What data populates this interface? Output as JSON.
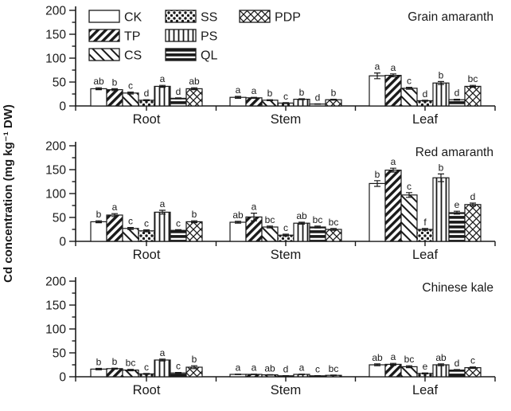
{
  "figure": {
    "y_axis_label": "Cd concentration (mg kg⁻¹ DW)",
    "ink_color": "#1a1a1a",
    "background": "#ffffff"
  },
  "legend": {
    "position": "top-left-of-first-panel",
    "items": [
      {
        "label": "CK",
        "pattern": "plain"
      },
      {
        "label": "TP",
        "pattern": "diag-forward"
      },
      {
        "label": "CS",
        "pattern": "diag-back"
      },
      {
        "label": "SS",
        "pattern": "dots"
      },
      {
        "label": "PS",
        "pattern": "vertical"
      },
      {
        "label": "QL",
        "pattern": "horizontal"
      },
      {
        "label": "PDP",
        "pattern": "crosshatch"
      }
    ]
  },
  "chart_data": [
    {
      "type": "bar",
      "title": "Grain amaranth",
      "categories": [
        "Root",
        "Stem",
        "Leaf"
      ],
      "ylim": [
        0,
        200
      ],
      "yticks": [
        0,
        50,
        100,
        150,
        200
      ],
      "minor_tick_step": 25,
      "grid": false,
      "series": [
        {
          "name": "CK",
          "pattern": "plain",
          "values": [
            36,
            18,
            63
          ],
          "errors": [
            2,
            2,
            6
          ],
          "letters": [
            "ab",
            "a",
            "a"
          ]
        },
        {
          "name": "TP",
          "pattern": "diag-forward",
          "values": [
            34,
            17,
            64
          ],
          "errors": [
            2,
            1,
            3
          ],
          "letters": [
            "b",
            "a",
            "a"
          ]
        },
        {
          "name": "CS",
          "pattern": "diag-back",
          "values": [
            27,
            12,
            37
          ],
          "errors": [
            2,
            1,
            2
          ],
          "letters": [
            "c",
            "b",
            "c"
          ]
        },
        {
          "name": "SS",
          "pattern": "dots",
          "values": [
            12,
            6,
            11
          ],
          "errors": [
            1,
            1,
            1
          ],
          "letters": [
            "d",
            "c",
            "d"
          ]
        },
        {
          "name": "PS",
          "pattern": "vertical",
          "values": [
            41,
            14,
            48
          ],
          "errors": [
            2,
            1,
            3
          ],
          "letters": [
            "a",
            "b",
            "b"
          ]
        },
        {
          "name": "QL",
          "pattern": "horizontal",
          "values": [
            16,
            4,
            13
          ],
          "errors": [
            1,
            0.5,
            1
          ],
          "letters": [
            "d",
            "d",
            "d"
          ]
        },
        {
          "name": "PDP",
          "pattern": "crosshatch",
          "values": [
            36,
            13,
            41
          ],
          "errors": [
            2,
            1,
            2
          ],
          "letters": [
            "ab",
            "b",
            "bc"
          ]
        }
      ]
    },
    {
      "type": "bar",
      "title": "Red amaranth",
      "categories": [
        "Root",
        "Stem",
        "Leaf"
      ],
      "ylim": [
        0,
        200
      ],
      "yticks": [
        0,
        50,
        100,
        150,
        200
      ],
      "minor_tick_step": 25,
      "grid": false,
      "series": [
        {
          "name": "CK",
          "pattern": "plain",
          "values": [
            41,
            40,
            121
          ],
          "errors": [
            2,
            2,
            6
          ],
          "letters": [
            "b",
            "ab",
            "b"
          ]
        },
        {
          "name": "TP",
          "pattern": "diag-forward",
          "values": [
            55,
            51,
            149
          ],
          "errors": [
            3,
            8,
            4
          ],
          "letters": [
            "a",
            "a",
            "a"
          ]
        },
        {
          "name": "CS",
          "pattern": "diag-back",
          "values": [
            27,
            30,
            97
          ],
          "errors": [
            2,
            2,
            5
          ],
          "letters": [
            "c",
            "bc",
            "c"
          ]
        },
        {
          "name": "SS",
          "pattern": "dots",
          "values": [
            22,
            13,
            25
          ],
          "errors": [
            2,
            2,
            2
          ],
          "letters": [
            "c",
            "c",
            "f"
          ]
        },
        {
          "name": "PS",
          "pattern": "vertical",
          "values": [
            61,
            38,
            133
          ],
          "errors": [
            4,
            2,
            8
          ],
          "letters": [
            "a",
            "ab",
            "b"
          ]
        },
        {
          "name": "QL",
          "pattern": "horizontal",
          "values": [
            23,
            30,
            60
          ],
          "errors": [
            1.5,
            2,
            3
          ],
          "letters": [
            "c",
            "bc",
            "e"
          ]
        },
        {
          "name": "PDP",
          "pattern": "crosshatch",
          "values": [
            41,
            25,
            77
          ],
          "errors": [
            2,
            2,
            3
          ],
          "letters": [
            "b",
            "bc",
            "d"
          ]
        }
      ]
    },
    {
      "type": "bar",
      "title": "Chinese kale",
      "categories": [
        "Root",
        "Stem",
        "Leaf"
      ],
      "ylim": [
        0,
        200
      ],
      "yticks": [
        0,
        50,
        100,
        150,
        200
      ],
      "minor_tick_step": 25,
      "grid": false,
      "series": [
        {
          "name": "CK",
          "pattern": "plain",
          "values": [
            16,
            5,
            25
          ],
          "errors": [
            1.5,
            0.5,
            2
          ],
          "letters": [
            "b",
            "a",
            "ab"
          ]
        },
        {
          "name": "TP",
          "pattern": "diag-forward",
          "values": [
            17,
            5,
            26
          ],
          "errors": [
            1,
            0.5,
            2
          ],
          "letters": [
            "b",
            "a",
            "a"
          ]
        },
        {
          "name": "CS",
          "pattern": "diag-back",
          "values": [
            14,
            4,
            21
          ],
          "errors": [
            1.5,
            0.5,
            2
          ],
          "letters": [
            "bc",
            "ab",
            "bc"
          ]
        },
        {
          "name": "SS",
          "pattern": "dots",
          "values": [
            6,
            2,
            7
          ],
          "errors": [
            1,
            0.3,
            1
          ],
          "letters": [
            "c",
            "d",
            "e"
          ]
        },
        {
          "name": "PS",
          "pattern": "vertical",
          "values": [
            35,
            5,
            25
          ],
          "errors": [
            2,
            0.5,
            2
          ],
          "letters": [
            "a",
            "a",
            "ab"
          ]
        },
        {
          "name": "QL",
          "pattern": "horizontal",
          "values": [
            8,
            2,
            14
          ],
          "errors": [
            1,
            0.3,
            1
          ],
          "letters": [
            "c",
            "c",
            "d"
          ]
        },
        {
          "name": "PDP",
          "pattern": "crosshatch",
          "values": [
            20,
            3,
            19
          ],
          "errors": [
            3,
            0.5,
            1.5
          ],
          "letters": [
            "b",
            "bc",
            "c"
          ]
        }
      ]
    }
  ]
}
